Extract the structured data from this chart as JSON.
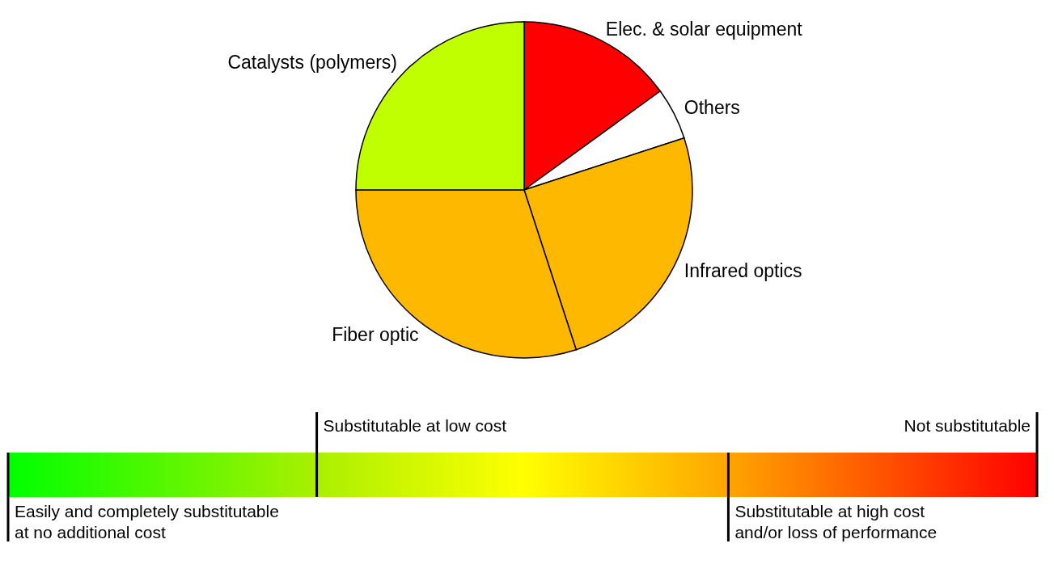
{
  "chart_data": {
    "type": "pie",
    "categories": [
      "Elec. & solar equipment",
      "Others",
      "Infrared optics",
      "Fiber optic",
      "Catalysts (polymers)"
    ],
    "values": [
      15,
      5,
      25,
      30,
      25
    ],
    "colors": [
      "#ff0000",
      "#ffffff",
      "#ffb800",
      "#ffb800",
      "#c0ff00"
    ],
    "legend": false,
    "annotations": [
      "Substitutable at low cost",
      "Not substitutable",
      "Easily and completely substitutable\nat no additional cost",
      "Substitutable at high cost\nand/or loss of performance"
    ]
  }
}
